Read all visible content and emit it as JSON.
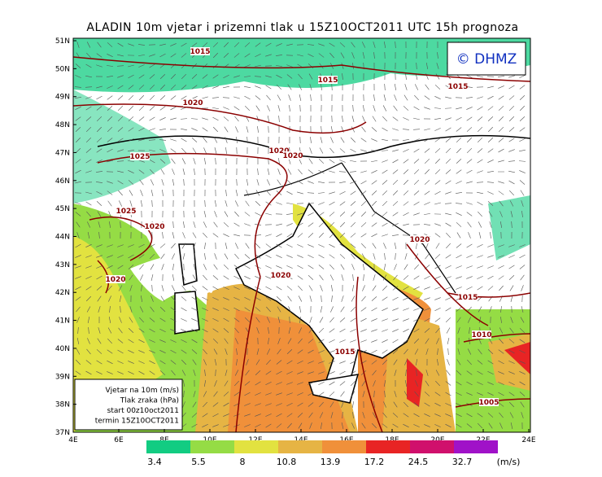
{
  "title": "ALADIN 10m vjetar i prizemni tlak u 15Z10OCT2011 UTC 15h prognoza",
  "logo": "© DHMZ",
  "lat_labels": [
    "51N",
    "50N",
    "49N",
    "48N",
    "47N",
    "46N",
    "45N",
    "44N",
    "43N",
    "42N",
    "41N",
    "40N",
    "39N",
    "38N",
    "37N"
  ],
  "lon_labels": [
    "4E",
    "6E",
    "8E",
    "10E",
    "12E",
    "14E",
    "16E",
    "18E",
    "20E",
    "22E",
    "24E"
  ],
  "isobar_labels": [
    "1015",
    "1015",
    "1015",
    "1020",
    "1025",
    "1020",
    "1020",
    "1025",
    "1020",
    "1020",
    "1020",
    "1020",
    "1015",
    "1010",
    "1015",
    "1005"
  ],
  "legend_box": [
    "Vjetar na 10m (m/s)",
    "Tlak zraka (hPa)",
    "start 00z10oct2011",
    "termin 15Z10OCT2011"
  ],
  "colorbar": {
    "labels": [
      "3.4",
      "5.5",
      "8",
      "10.8",
      "13.9",
      "17.2",
      "24.5",
      "32.7",
      "(m/s)"
    ],
    "colors": [
      "#12cc82",
      "#95dc45",
      "#e2e240",
      "#e6b444",
      "#f0903a",
      "#e82424",
      "#d0106c",
      "#a012c8"
    ]
  }
}
